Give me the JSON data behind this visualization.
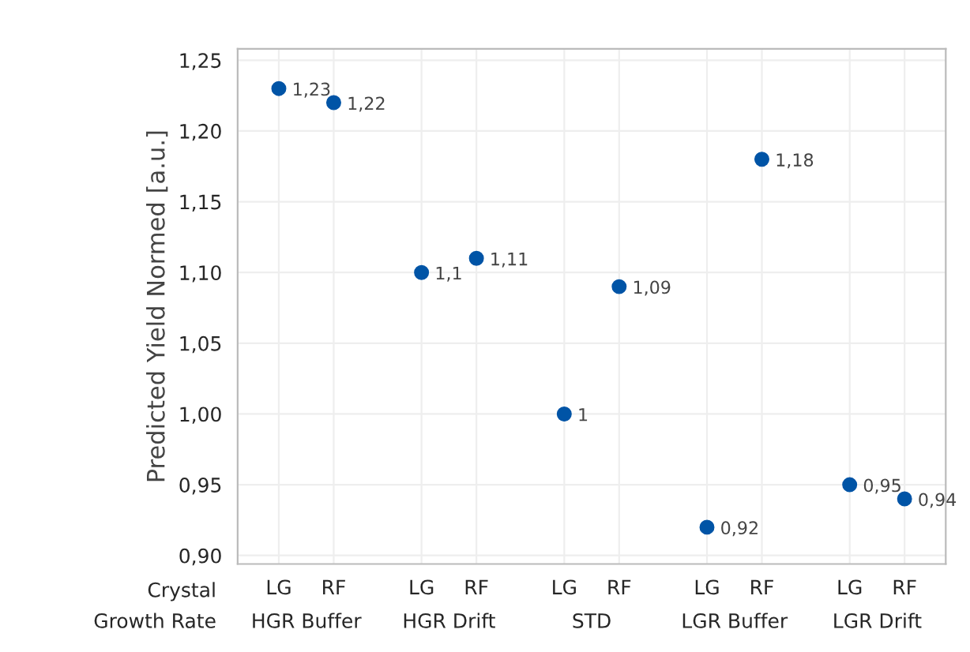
{
  "chart_data": {
    "type": "scatter",
    "ylabel": "Predicted Yield Normed [a.u.]",
    "categories": [
      "LG",
      "RF",
      "LG",
      "RF",
      "LG",
      "RF",
      "LG",
      "RF",
      "LG",
      "RF"
    ],
    "values": [
      1.23,
      1.22,
      1.1,
      1.11,
      1,
      1.09,
      0.92,
      1.18,
      0.95,
      0.94
    ],
    "value_labels": [
      "1,23",
      "1,22",
      "1,1",
      "1,11",
      "1",
      "1,09",
      "0,92",
      "1,18",
      "0,95",
      "0,94"
    ],
    "color": "#0054a6",
    "marker": "circle",
    "ylim": [
      0.894,
      1.258
    ],
    "yticks": [
      {
        "value": 0.9,
        "label": "0,90"
      },
      {
        "value": 0.95,
        "label": "0,95"
      },
      {
        "value": 1.0,
        "label": "1,00"
      },
      {
        "value": 1.05,
        "label": "1,05"
      },
      {
        "value": 1.1,
        "label": "1,10"
      },
      {
        "value": 1.15,
        "label": "1,15"
      },
      {
        "value": 1.2,
        "label": "1,20"
      },
      {
        "value": 1.25,
        "label": "1,25"
      }
    ],
    "grid": true,
    "annotations": [
      "Crystal",
      "Growth Rate",
      "HGR Buffer",
      "HGR Drift",
      "STD",
      "LGR Buffer",
      "LGR Drift"
    ]
  }
}
